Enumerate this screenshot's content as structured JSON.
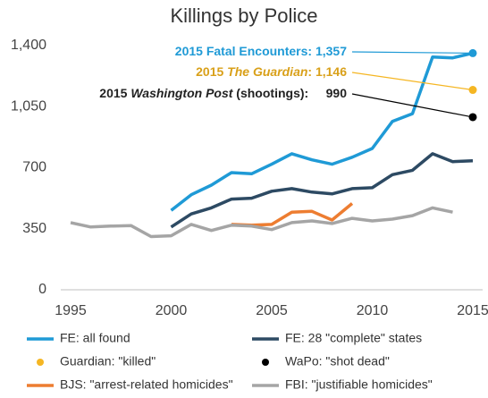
{
  "chart_data": {
    "type": "line",
    "title": "Killings by Police",
    "x": [
      1995,
      1996,
      1997,
      1998,
      1999,
      2000,
      2001,
      2002,
      2003,
      2004,
      2005,
      2006,
      2007,
      2008,
      2009,
      2010,
      2011,
      2012,
      2013,
      2014,
      2015
    ],
    "xlim": [
      1995,
      2015
    ],
    "xticks": [
      1995,
      2000,
      2005,
      2010,
      2015
    ],
    "ylim": [
      0,
      1400
    ],
    "yticks": [
      0,
      350,
      700,
      {
        "value": 1050,
        "label": "1,050"
      },
      {
        "value": 1400,
        "label": "1,400"
      }
    ],
    "grid": false,
    "series": [
      {
        "name": "FE: all found",
        "color": "#1f9ad6",
        "mark": "line",
        "values": [
          null,
          null,
          null,
          null,
          null,
          455,
          545,
          600,
          672,
          665,
          720,
          780,
          745,
          720,
          760,
          810,
          965,
          1010,
          1335,
          1330,
          1357
        ]
      },
      {
        "name": "FE: 28 \"complete\" states",
        "color": "#2d4a63",
        "mark": "line",
        "values": [
          null,
          null,
          null,
          null,
          null,
          360,
          435,
          470,
          520,
          525,
          565,
          580,
          560,
          550,
          580,
          585,
          660,
          685,
          780,
          735,
          740
        ]
      },
      {
        "name": "Guardian: \"killed\"",
        "color": "#f5b623",
        "mark": "dot",
        "values": [
          null,
          null,
          null,
          null,
          null,
          null,
          null,
          null,
          null,
          null,
          null,
          null,
          null,
          null,
          null,
          null,
          null,
          null,
          null,
          null,
          1146
        ]
      },
      {
        "name": "WaPo: \"shot dead\"",
        "color": "#000000",
        "mark": "dot",
        "values": [
          null,
          null,
          null,
          null,
          null,
          null,
          null,
          null,
          null,
          null,
          null,
          null,
          null,
          null,
          null,
          null,
          null,
          null,
          null,
          null,
          990
        ]
      },
      {
        "name": "BJS: \"arrest-related homicides\"",
        "color": "#ed7d31",
        "mark": "line",
        "values": [
          null,
          null,
          null,
          null,
          null,
          null,
          null,
          null,
          375,
          370,
          375,
          445,
          450,
          400,
          495,
          null,
          null,
          null,
          null,
          null,
          null
        ]
      },
      {
        "name": "FBI: \"justifiable homicides\"",
        "color": "#a5a5a5",
        "mark": "line",
        "values": [
          385,
          360,
          365,
          368,
          305,
          310,
          375,
          340,
          370,
          365,
          345,
          385,
          395,
          380,
          410,
          395,
          405,
          425,
          470,
          445,
          null
        ]
      }
    ],
    "annotations": [
      {
        "color": "#1f9ad6",
        "series": 0,
        "parts": [
          {
            "text": "2015 Fatal Encounters: 1,357"
          }
        ]
      },
      {
        "color": "#d9a019",
        "series": 2,
        "parts": [
          {
            "text": "2015 "
          },
          {
            "text": "The Guardian",
            "italic": true
          },
          {
            "text": ": 1,146"
          }
        ]
      },
      {
        "color": "#222222",
        "series": 3,
        "parts": [
          {
            "text": "2015 "
          },
          {
            "text": "Washington Post",
            "italic": true
          },
          {
            "text": " (shootings):     990"
          }
        ]
      }
    ]
  }
}
